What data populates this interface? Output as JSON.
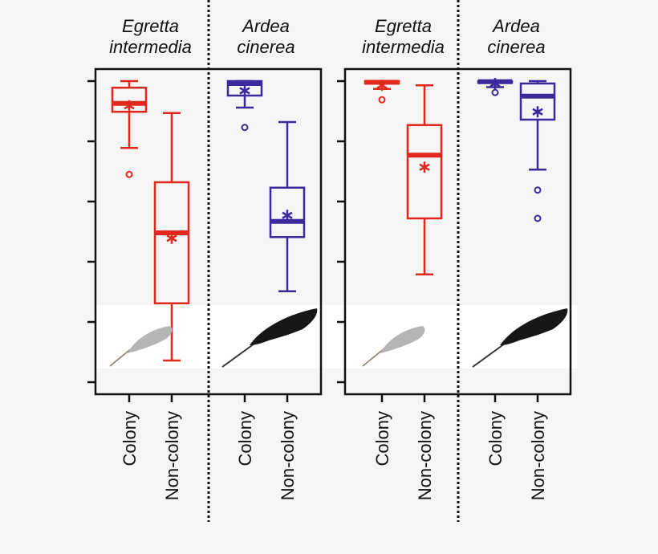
{
  "chart_data": [
    {
      "type": "box",
      "ylim": [
        0,
        5
      ],
      "yticks": [
        0,
        1,
        2,
        3,
        4,
        5
      ],
      "ytick_labels": [],
      "grid": false,
      "groups": [
        {
          "species": [
            "Egretta",
            "intermedia"
          ],
          "color": "#e0281e",
          "boxes": [
            {
              "category": "Colony",
              "whisker_low": 3.89,
              "q1": 4.49,
              "median": 4.63,
              "q3": 4.89,
              "whisker_high": 5.0,
              "mean": 4.59,
              "outliers": [
                3.45
              ]
            },
            {
              "category": "Non-colony",
              "whisker_low": 0.36,
              "q1": 1.31,
              "median": 2.48,
              "q3": 3.32,
              "whisker_high": 4.47,
              "mean": 2.39,
              "outliers": []
            }
          ]
        },
        {
          "species": [
            "Ardea",
            "cinerea"
          ],
          "color": "#3a2a9c",
          "boxes": [
            {
              "category": "Colony",
              "whisker_low": 4.56,
              "q1": 4.76,
              "median": 4.96,
              "q3": 5.0,
              "whisker_high": 5.0,
              "mean": 4.84,
              "outliers": [
                4.23
              ]
            },
            {
              "category": "Non-colony",
              "whisker_low": 1.51,
              "q1": 2.41,
              "median": 2.67,
              "q3": 3.23,
              "whisker_high": 4.32,
              "mean": 2.77,
              "outliers": []
            }
          ]
        }
      ]
    },
    {
      "type": "box",
      "ylim": [
        0,
        5
      ],
      "yticks": [
        0,
        1,
        2,
        3,
        4,
        5
      ],
      "ytick_labels": [],
      "grid": false,
      "groups": [
        {
          "species": [
            "Egretta",
            "intermedia"
          ],
          "color": "#e0281e",
          "boxes": [
            {
              "category": "Colony",
              "whisker_low": 4.87,
              "q1": 4.96,
              "median": 4.98,
              "q3": 5.0,
              "whisker_high": 5.0,
              "mean": 4.93,
              "outliers": [
                4.69
              ]
            },
            {
              "category": "Non-colony",
              "whisker_low": 1.79,
              "q1": 2.72,
              "median": 3.77,
              "q3": 4.27,
              "whisker_high": 4.93,
              "mean": 3.57,
              "outliers": []
            }
          ]
        },
        {
          "species": [
            "Ardea",
            "cinerea"
          ],
          "color": "#3a2a9c",
          "boxes": [
            {
              "category": "Colony",
              "whisker_low": 4.9,
              "q1": 4.97,
              "median": 4.99,
              "q3": 5.0,
              "whisker_high": 5.0,
              "mean": 4.96,
              "outliers": [
                4.81
              ]
            },
            {
              "category": "Non-colony",
              "whisker_low": 3.53,
              "q1": 4.36,
              "median": 4.75,
              "q3": 4.96,
              "whisker_high": 5.0,
              "mean": 4.49,
              "outliers": [
                3.19,
                2.72
              ]
            }
          ]
        }
      ]
    }
  ]
}
